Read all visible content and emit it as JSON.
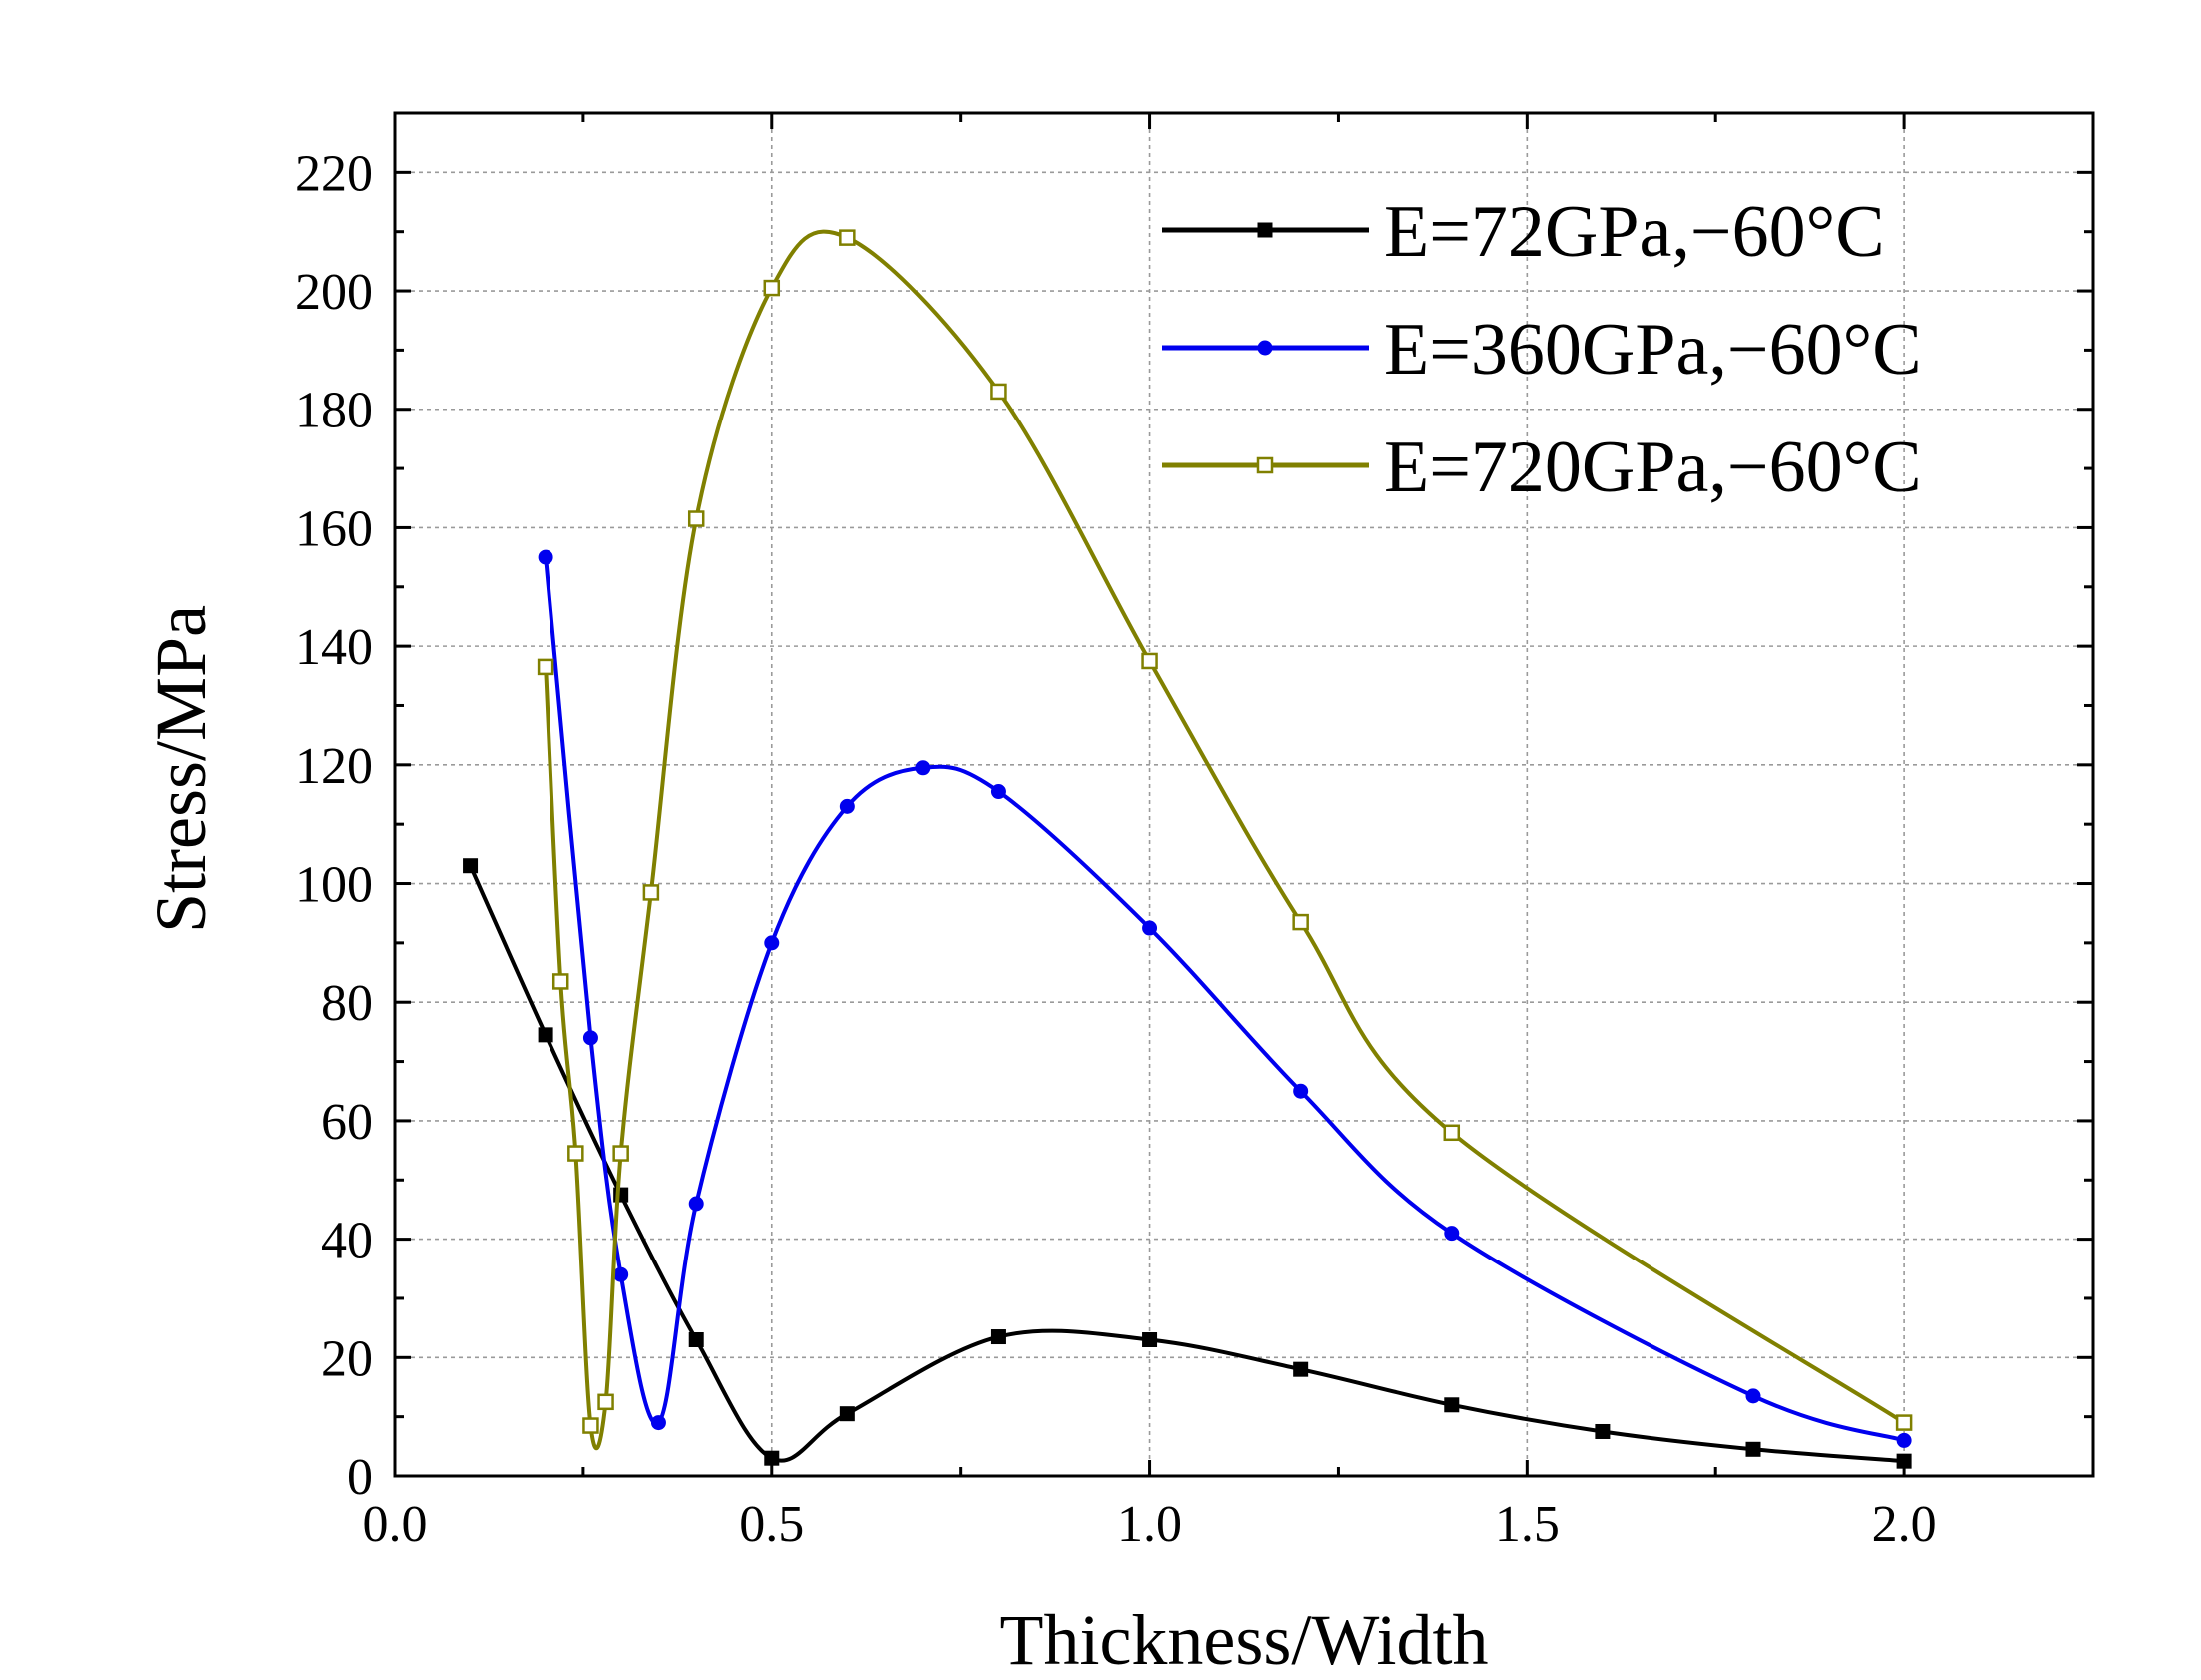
{
  "chart_data": {
    "type": "line",
    "title": "",
    "xlabel": "Thickness/Width",
    "ylabel": "Stress/MPa",
    "xlim": [
      0.0,
      2.25
    ],
    "ylim": [
      0,
      230
    ],
    "xticks": [
      0.0,
      0.5,
      1.0,
      1.5,
      2.0
    ],
    "xtick_labels": [
      "0.0",
      "0.5",
      "1.0",
      "1.5",
      "2.0"
    ],
    "yticks": [
      0,
      20,
      40,
      60,
      80,
      100,
      120,
      140,
      160,
      180,
      200,
      220
    ],
    "ytick_labels": [
      "0",
      "20",
      "40",
      "60",
      "80",
      "100",
      "120",
      "140",
      "160",
      "180",
      "200",
      "220"
    ],
    "grid": true,
    "legend_position": "top-right",
    "series": [
      {
        "name": "E=72GPa,−60°C",
        "color": "#000000",
        "marker": "filled-square",
        "x": [
          0.1,
          0.2,
          0.3,
          0.4,
          0.5,
          0.6,
          0.8,
          1.0,
          1.2,
          1.4,
          1.6,
          1.8,
          2.0
        ],
        "y": [
          103,
          74.5,
          47.5,
          23,
          3,
          10.5,
          23.5,
          23,
          18,
          12,
          7.5,
          4.5,
          2.5
        ]
      },
      {
        "name": "E=360GPa,−60°C",
        "color": "#0000ee",
        "marker": "filled-circle",
        "x": [
          0.2,
          0.26,
          0.3,
          0.35,
          0.4,
          0.5,
          0.6,
          0.7,
          0.8,
          1.0,
          1.2,
          1.4,
          1.8,
          2.0
        ],
        "y": [
          155,
          74,
          34,
          9,
          46,
          90,
          113,
          119.5,
          115.5,
          92.5,
          65,
          41,
          13.5,
          6
        ]
      },
      {
        "name": "E=720GPa,−60°C",
        "color": "#808000",
        "marker": "open-square",
        "x": [
          0.2,
          0.22,
          0.24,
          0.26,
          0.28,
          0.3,
          0.34,
          0.4,
          0.5,
          0.6,
          0.8,
          1.0,
          1.2,
          1.4,
          2.0
        ],
        "y": [
          136.5,
          83.5,
          54.5,
          8.5,
          12.5,
          54.5,
          98.5,
          161.5,
          200.5,
          209,
          183,
          137.5,
          93.5,
          58,
          9
        ]
      }
    ]
  }
}
